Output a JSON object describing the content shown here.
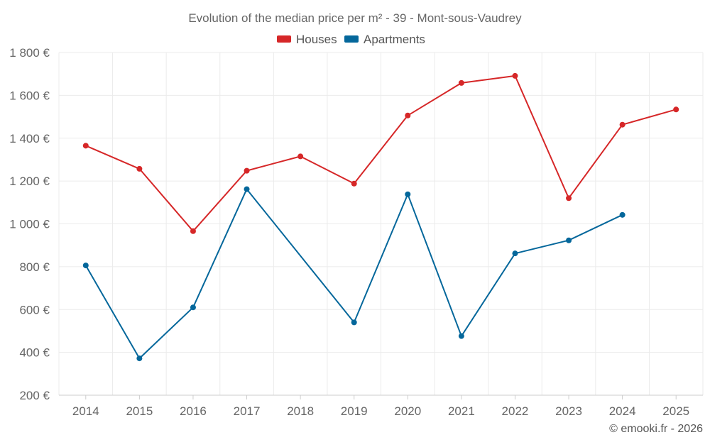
{
  "chart_data": {
    "type": "line",
    "title": "Evolution of the median price per m² - 39 - Mont-sous-Vaudrey",
    "categories": [
      "2014",
      "2015",
      "2016",
      "2017",
      "2018",
      "2019",
      "2020",
      "2021",
      "2022",
      "2023",
      "2024",
      "2025"
    ],
    "series": [
      {
        "name": "Houses",
        "color": "#d62728",
        "values": [
          1365,
          1257,
          966,
          1248,
          1315,
          1188,
          1506,
          1658,
          1691,
          1120,
          1463,
          1534
        ]
      },
      {
        "name": "Apartments",
        "color": "#04679b",
        "values": [
          806,
          372,
          610,
          1162,
          null,
          540,
          1138,
          476,
          862,
          923,
          1042,
          null
        ]
      }
    ],
    "ylim": [
      200,
      1800
    ],
    "yticks": [
      200,
      400,
      600,
      800,
      1000,
      1200,
      1400,
      1600,
      1800
    ],
    "ytick_labels": [
      "200 €",
      "400 €",
      "600 €",
      "800 €",
      "1 000 €",
      "1 200 €",
      "1 400 €",
      "1 600 €",
      "1 800 €"
    ],
    "xlabel": "",
    "ylabel": "",
    "grid": true,
    "legend_position": "top-center"
  },
  "credit": "© emooki.fr - 2026"
}
